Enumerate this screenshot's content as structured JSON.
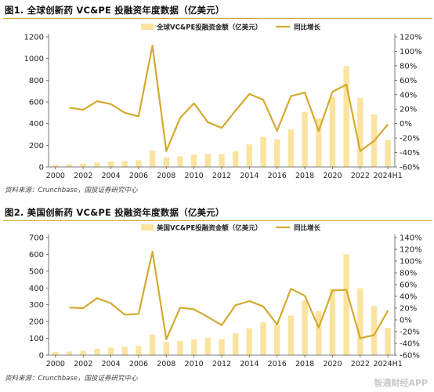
{
  "figures": [
    {
      "title": "图1. 全球创新药 VC&PE 投融资年度数据（亿美元）",
      "source": "资料来源：Crunchbase，国投证券研究中心"
    },
    {
      "title": "图2. 美国创新药 VC&PE 投融资年度数据（亿美元）",
      "source": "资料来源：Crunchbase，国投证券研究中心"
    }
  ],
  "watermark": "智通财经APP",
  "chart_data": [
    {
      "type": "bar+line",
      "title": "图1. 全球创新药 VC&PE 投融资年度数据（亿美元）",
      "categories": [
        "2000",
        "2001",
        "2002",
        "2003",
        "2004",
        "2005",
        "2006",
        "2007",
        "2008",
        "2009",
        "2010",
        "2011",
        "2012",
        "2013",
        "2014",
        "2015",
        "2016",
        "2017",
        "2018",
        "2019",
        "2020",
        "2021",
        "2022",
        "2023",
        "2024H1"
      ],
      "x_tick_labels": [
        "2000",
        "2002",
        "2004",
        "2006",
        "2008",
        "2010",
        "2012",
        "2014",
        "2016",
        "2018",
        "2020",
        "2022",
        "2024H1"
      ],
      "x_tick_indices": [
        0,
        2,
        4,
        6,
        8,
        10,
        12,
        14,
        16,
        18,
        20,
        22,
        24
      ],
      "legend": [
        "全球VC&PE投融资金额（亿美元）",
        "同比增长"
      ],
      "legend_position": "top",
      "grid": false,
      "series": [
        {
          "name": "全球VC&PE投融资金额（亿美元）",
          "kind": "bar",
          "axis": "left",
          "color": "#fbe3a0",
          "values": [
            20,
            25,
            30,
            42,
            52,
            55,
            62,
            150,
            88,
            98,
            115,
            120,
            118,
            145,
            208,
            278,
            255,
            345,
            508,
            448,
            648,
            930,
            635,
            485,
            250
          ]
        },
        {
          "name": "同比增长",
          "kind": "line",
          "axis": "right",
          "color": "#d4aa2e",
          "values": [
            null,
            22,
            19,
            31,
            27,
            15,
            10,
            108,
            -38,
            8,
            28,
            2,
            -6,
            18,
            41,
            33,
            -10,
            38,
            43,
            -10,
            44,
            54,
            -38,
            -24,
            -1
          ]
        }
      ],
      "y_left": {
        "min": 0,
        "max": 1200,
        "ticks": [
          0,
          200,
          400,
          600,
          800,
          1000,
          1200
        ]
      },
      "y_right": {
        "min": -60,
        "max": 120,
        "ticks": [
          -60,
          -40,
          -20,
          0,
          20,
          40,
          60,
          80,
          100,
          120
        ],
        "unit": "%"
      }
    },
    {
      "type": "bar+line",
      "title": "图2. 美国创新药 VC&PE 投融资年度数据（亿美元）",
      "categories": [
        "2000",
        "2001",
        "2002",
        "2003",
        "2004",
        "2005",
        "2006",
        "2007",
        "2008",
        "2009",
        "2010",
        "2011",
        "2012",
        "2013",
        "2014",
        "2015",
        "2016",
        "2017",
        "2018",
        "2019",
        "2020",
        "2021",
        "2022",
        "2023",
        "2024H1"
      ],
      "x_tick_labels": [
        "2000",
        "2002",
        "2004",
        "2006",
        "2008",
        "2010",
        "2012",
        "2014",
        "2016",
        "2018",
        "2020",
        "2022",
        "2024H1"
      ],
      "x_tick_indices": [
        0,
        2,
        4,
        6,
        8,
        10,
        12,
        14,
        16,
        18,
        20,
        22,
        24
      ],
      "legend": [
        "美国VC&PE投融资金额（亿美元）",
        "同比增长"
      ],
      "legend_position": "top",
      "grid": false,
      "series": [
        {
          "name": "美国VC&PE投融资金额（亿美元）",
          "kind": "bar",
          "axis": "left",
          "color": "#fbe3a0",
          "values": [
            18,
            22,
            27,
            38,
            45,
            50,
            55,
            122,
            78,
            85,
            95,
            102,
            95,
            130,
            160,
            195,
            180,
            235,
            325,
            262,
            395,
            600,
            398,
            292,
            162
          ]
        },
        {
          "name": "同比增长",
          "kind": "line",
          "axis": "right",
          "color": "#d4aa2e",
          "values": [
            null,
            21,
            20,
            37,
            28,
            9,
            10,
            116,
            -33,
            21,
            18,
            5,
            -9,
            25,
            32,
            23,
            -8,
            53,
            41,
            -13,
            50,
            51,
            -31,
            -26,
            16
          ]
        }
      ],
      "y_left": {
        "min": 0,
        "max": 700,
        "ticks": [
          0,
          100,
          200,
          300,
          400,
          500,
          600,
          700
        ]
      },
      "y_right": {
        "min": -60,
        "max": 140,
        "ticks": [
          -60,
          -40,
          -20,
          0,
          20,
          40,
          60,
          80,
          100,
          120,
          140
        ],
        "unit": "%"
      }
    }
  ]
}
